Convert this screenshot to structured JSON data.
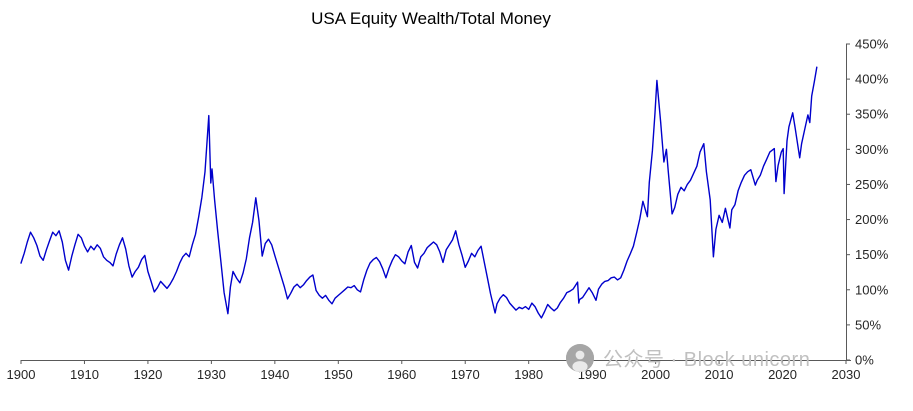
{
  "chart_data": {
    "type": "line",
    "title": "USA Equity Wealth/Total Money",
    "xlabel": "",
    "ylabel": "",
    "xlim": [
      1900,
      2030
    ],
    "ylim": [
      0,
      450
    ],
    "x_ticks": [
      1900,
      1910,
      1920,
      1930,
      1940,
      1950,
      1960,
      1970,
      1980,
      1990,
      2000,
      2010,
      2020,
      2030
    ],
    "y_tick_values": [
      0,
      50,
      100,
      150,
      200,
      250,
      300,
      350,
      400,
      450
    ],
    "y_ticks": [
      "0%",
      "50%",
      "100%",
      "150%",
      "200%",
      "250%",
      "300%",
      "350%",
      "400%",
      "450%"
    ],
    "grid": false,
    "legend_position": "none",
    "line_color": "#0000CC",
    "axis_color": "#595959",
    "points": [
      [
        1900,
        138
      ],
      [
        1900.5,
        152
      ],
      [
        1901,
        168
      ],
      [
        1901.5,
        182
      ],
      [
        1902,
        174
      ],
      [
        1902.5,
        163
      ],
      [
        1903,
        148
      ],
      [
        1903.5,
        142
      ],
      [
        1904,
        157
      ],
      [
        1904.5,
        170
      ],
      [
        1905,
        182
      ],
      [
        1905.5,
        177
      ],
      [
        1906,
        184
      ],
      [
        1906.5,
        168
      ],
      [
        1907,
        142
      ],
      [
        1907.5,
        128
      ],
      [
        1908,
        148
      ],
      [
        1908.5,
        164
      ],
      [
        1909,
        179
      ],
      [
        1909.5,
        174
      ],
      [
        1910,
        162
      ],
      [
        1910.5,
        154
      ],
      [
        1911,
        162
      ],
      [
        1911.5,
        157
      ],
      [
        1912,
        164
      ],
      [
        1912.5,
        159
      ],
      [
        1913,
        147
      ],
      [
        1913.5,
        142
      ],
      [
        1914,
        139
      ],
      [
        1914.5,
        134
      ],
      [
        1915,
        151
      ],
      [
        1915.5,
        164
      ],
      [
        1916,
        174
      ],
      [
        1916.5,
        158
      ],
      [
        1917,
        134
      ],
      [
        1917.5,
        118
      ],
      [
        1918,
        126
      ],
      [
        1918.5,
        132
      ],
      [
        1919,
        143
      ],
      [
        1919.5,
        149
      ],
      [
        1920,
        126
      ],
      [
        1920.5,
        112
      ],
      [
        1921,
        97
      ],
      [
        1921.5,
        103
      ],
      [
        1922,
        112
      ],
      [
        1922.5,
        107
      ],
      [
        1923,
        102
      ],
      [
        1923.5,
        108
      ],
      [
        1924,
        116
      ],
      [
        1924.5,
        126
      ],
      [
        1925,
        138
      ],
      [
        1925.5,
        147
      ],
      [
        1926,
        152
      ],
      [
        1926.5,
        147
      ],
      [
        1927,
        164
      ],
      [
        1927.5,
        179
      ],
      [
        1928,
        204
      ],
      [
        1928.5,
        232
      ],
      [
        1929,
        268
      ],
      [
        1929.6,
        348
      ],
      [
        1929.9,
        252
      ],
      [
        1930.1,
        272
      ],
      [
        1930.5,
        228
      ],
      [
        1931,
        183
      ],
      [
        1931.5,
        140
      ],
      [
        1932,
        96
      ],
      [
        1932.6,
        66
      ],
      [
        1933,
        104
      ],
      [
        1933.4,
        126
      ],
      [
        1934,
        116
      ],
      [
        1934.5,
        110
      ],
      [
        1935,
        124
      ],
      [
        1935.5,
        144
      ],
      [
        1936,
        174
      ],
      [
        1936.5,
        196
      ],
      [
        1937,
        231
      ],
      [
        1937.5,
        198
      ],
      [
        1938,
        148
      ],
      [
        1938.5,
        166
      ],
      [
        1939,
        172
      ],
      [
        1939.5,
        164
      ],
      [
        1940,
        149
      ],
      [
        1940.5,
        134
      ],
      [
        1941,
        119
      ],
      [
        1941.5,
        104
      ],
      [
        1942,
        87
      ],
      [
        1942.5,
        95
      ],
      [
        1943,
        104
      ],
      [
        1943.5,
        108
      ],
      [
        1944,
        103
      ],
      [
        1944.5,
        107
      ],
      [
        1945,
        113
      ],
      [
        1945.5,
        118
      ],
      [
        1946,
        121
      ],
      [
        1946.5,
        99
      ],
      [
        1947,
        92
      ],
      [
        1947.5,
        88
      ],
      [
        1948,
        92
      ],
      [
        1948.5,
        85
      ],
      [
        1949,
        80
      ],
      [
        1949.5,
        88
      ],
      [
        1950,
        92
      ],
      [
        1950.5,
        96
      ],
      [
        1951,
        100
      ],
      [
        1951.5,
        104
      ],
      [
        1952,
        103
      ],
      [
        1952.5,
        106
      ],
      [
        1953,
        100
      ],
      [
        1953.5,
        97
      ],
      [
        1954,
        114
      ],
      [
        1954.5,
        128
      ],
      [
        1955,
        138
      ],
      [
        1955.5,
        143
      ],
      [
        1956,
        146
      ],
      [
        1956.5,
        140
      ],
      [
        1957,
        130
      ],
      [
        1957.5,
        117
      ],
      [
        1958,
        131
      ],
      [
        1958.5,
        142
      ],
      [
        1959,
        150
      ],
      [
        1959.5,
        147
      ],
      [
        1960,
        141
      ],
      [
        1960.5,
        137
      ],
      [
        1961,
        154
      ],
      [
        1961.5,
        163
      ],
      [
        1962,
        139
      ],
      [
        1962.5,
        131
      ],
      [
        1963,
        147
      ],
      [
        1963.5,
        152
      ],
      [
        1964,
        160
      ],
      [
        1964.5,
        164
      ],
      [
        1965,
        168
      ],
      [
        1965.5,
        164
      ],
      [
        1966,
        154
      ],
      [
        1966.5,
        139
      ],
      [
        1967,
        157
      ],
      [
        1967.5,
        164
      ],
      [
        1968,
        171
      ],
      [
        1968.5,
        184
      ],
      [
        1969,
        164
      ],
      [
        1969.5,
        149
      ],
      [
        1970,
        132
      ],
      [
        1970.5,
        141
      ],
      [
        1971,
        152
      ],
      [
        1971.5,
        147
      ],
      [
        1972,
        156
      ],
      [
        1972.5,
        162
      ],
      [
        1973,
        139
      ],
      [
        1973.5,
        117
      ],
      [
        1974,
        94
      ],
      [
        1974.7,
        67
      ],
      [
        1975,
        80
      ],
      [
        1975.5,
        88
      ],
      [
        1976,
        93
      ],
      [
        1976.5,
        89
      ],
      [
        1977,
        81
      ],
      [
        1977.5,
        76
      ],
      [
        1978,
        71
      ],
      [
        1978.5,
        75
      ],
      [
        1979,
        73
      ],
      [
        1979.5,
        76
      ],
      [
        1980,
        72
      ],
      [
        1980.5,
        81
      ],
      [
        1981,
        76
      ],
      [
        1981.5,
        67
      ],
      [
        1982,
        60
      ],
      [
        1982.5,
        69
      ],
      [
        1983,
        79
      ],
      [
        1983.5,
        74
      ],
      [
        1984,
        70
      ],
      [
        1984.5,
        74
      ],
      [
        1985,
        82
      ],
      [
        1985.5,
        88
      ],
      [
        1986,
        96
      ],
      [
        1986.5,
        98
      ],
      [
        1987,
        101
      ],
      [
        1987.7,
        111
      ],
      [
        1987.9,
        81
      ],
      [
        1988,
        86
      ],
      [
        1988.5,
        89
      ],
      [
        1989,
        96
      ],
      [
        1989.5,
        103
      ],
      [
        1990,
        96
      ],
      [
        1990.6,
        85
      ],
      [
        1991,
        101
      ],
      [
        1991.5,
        108
      ],
      [
        1992,
        112
      ],
      [
        1992.5,
        113
      ],
      [
        1993,
        117
      ],
      [
        1993.5,
        118
      ],
      [
        1994,
        114
      ],
      [
        1994.5,
        117
      ],
      [
        1995,
        128
      ],
      [
        1995.5,
        141
      ],
      [
        1996,
        151
      ],
      [
        1996.5,
        162
      ],
      [
        1997,
        181
      ],
      [
        1997.5,
        201
      ],
      [
        1998,
        226
      ],
      [
        1998.7,
        204
      ],
      [
        1999,
        253
      ],
      [
        1999.5,
        298
      ],
      [
        1999.9,
        352
      ],
      [
        2000.2,
        398
      ],
      [
        2000.5,
        368
      ],
      [
        2000.8,
        338
      ],
      [
        2001,
        315
      ],
      [
        2001.3,
        282
      ],
      [
        2001.7,
        300
      ],
      [
        2002,
        268
      ],
      [
        2002.6,
        208
      ],
      [
        2003,
        217
      ],
      [
        2003.5,
        236
      ],
      [
        2004,
        246
      ],
      [
        2004.5,
        241
      ],
      [
        2005,
        250
      ],
      [
        2005.5,
        256
      ],
      [
        2006,
        266
      ],
      [
        2006.5,
        276
      ],
      [
        2007,
        296
      ],
      [
        2007.6,
        308
      ],
      [
        2008,
        268
      ],
      [
        2008.6,
        228
      ],
      [
        2009.1,
        147
      ],
      [
        2009.5,
        186
      ],
      [
        2010,
        206
      ],
      [
        2010.5,
        196
      ],
      [
        2011,
        216
      ],
      [
        2011.7,
        188
      ],
      [
        2012,
        214
      ],
      [
        2012.5,
        221
      ],
      [
        2013,
        241
      ],
      [
        2013.5,
        253
      ],
      [
        2014,
        263
      ],
      [
        2014.5,
        268
      ],
      [
        2015,
        271
      ],
      [
        2015.7,
        249
      ],
      [
        2016,
        256
      ],
      [
        2016.5,
        263
      ],
      [
        2017,
        276
      ],
      [
        2017.5,
        286
      ],
      [
        2018,
        296
      ],
      [
        2018.7,
        301
      ],
      [
        2018.95,
        254
      ],
      [
        2019.3,
        277
      ],
      [
        2019.8,
        296
      ],
      [
        2020.1,
        301
      ],
      [
        2020.25,
        237
      ],
      [
        2020.7,
        312
      ],
      [
        2021,
        332
      ],
      [
        2021.6,
        352
      ],
      [
        2022,
        330
      ],
      [
        2022.7,
        288
      ],
      [
        2023,
        308
      ],
      [
        2023.5,
        329
      ],
      [
        2024,
        349
      ],
      [
        2024.3,
        338
      ],
      [
        2024.6,
        376
      ],
      [
        2025,
        396
      ],
      [
        2025.4,
        417
      ]
    ]
  },
  "watermark": {
    "text": "公众号 · Block unicorn"
  }
}
